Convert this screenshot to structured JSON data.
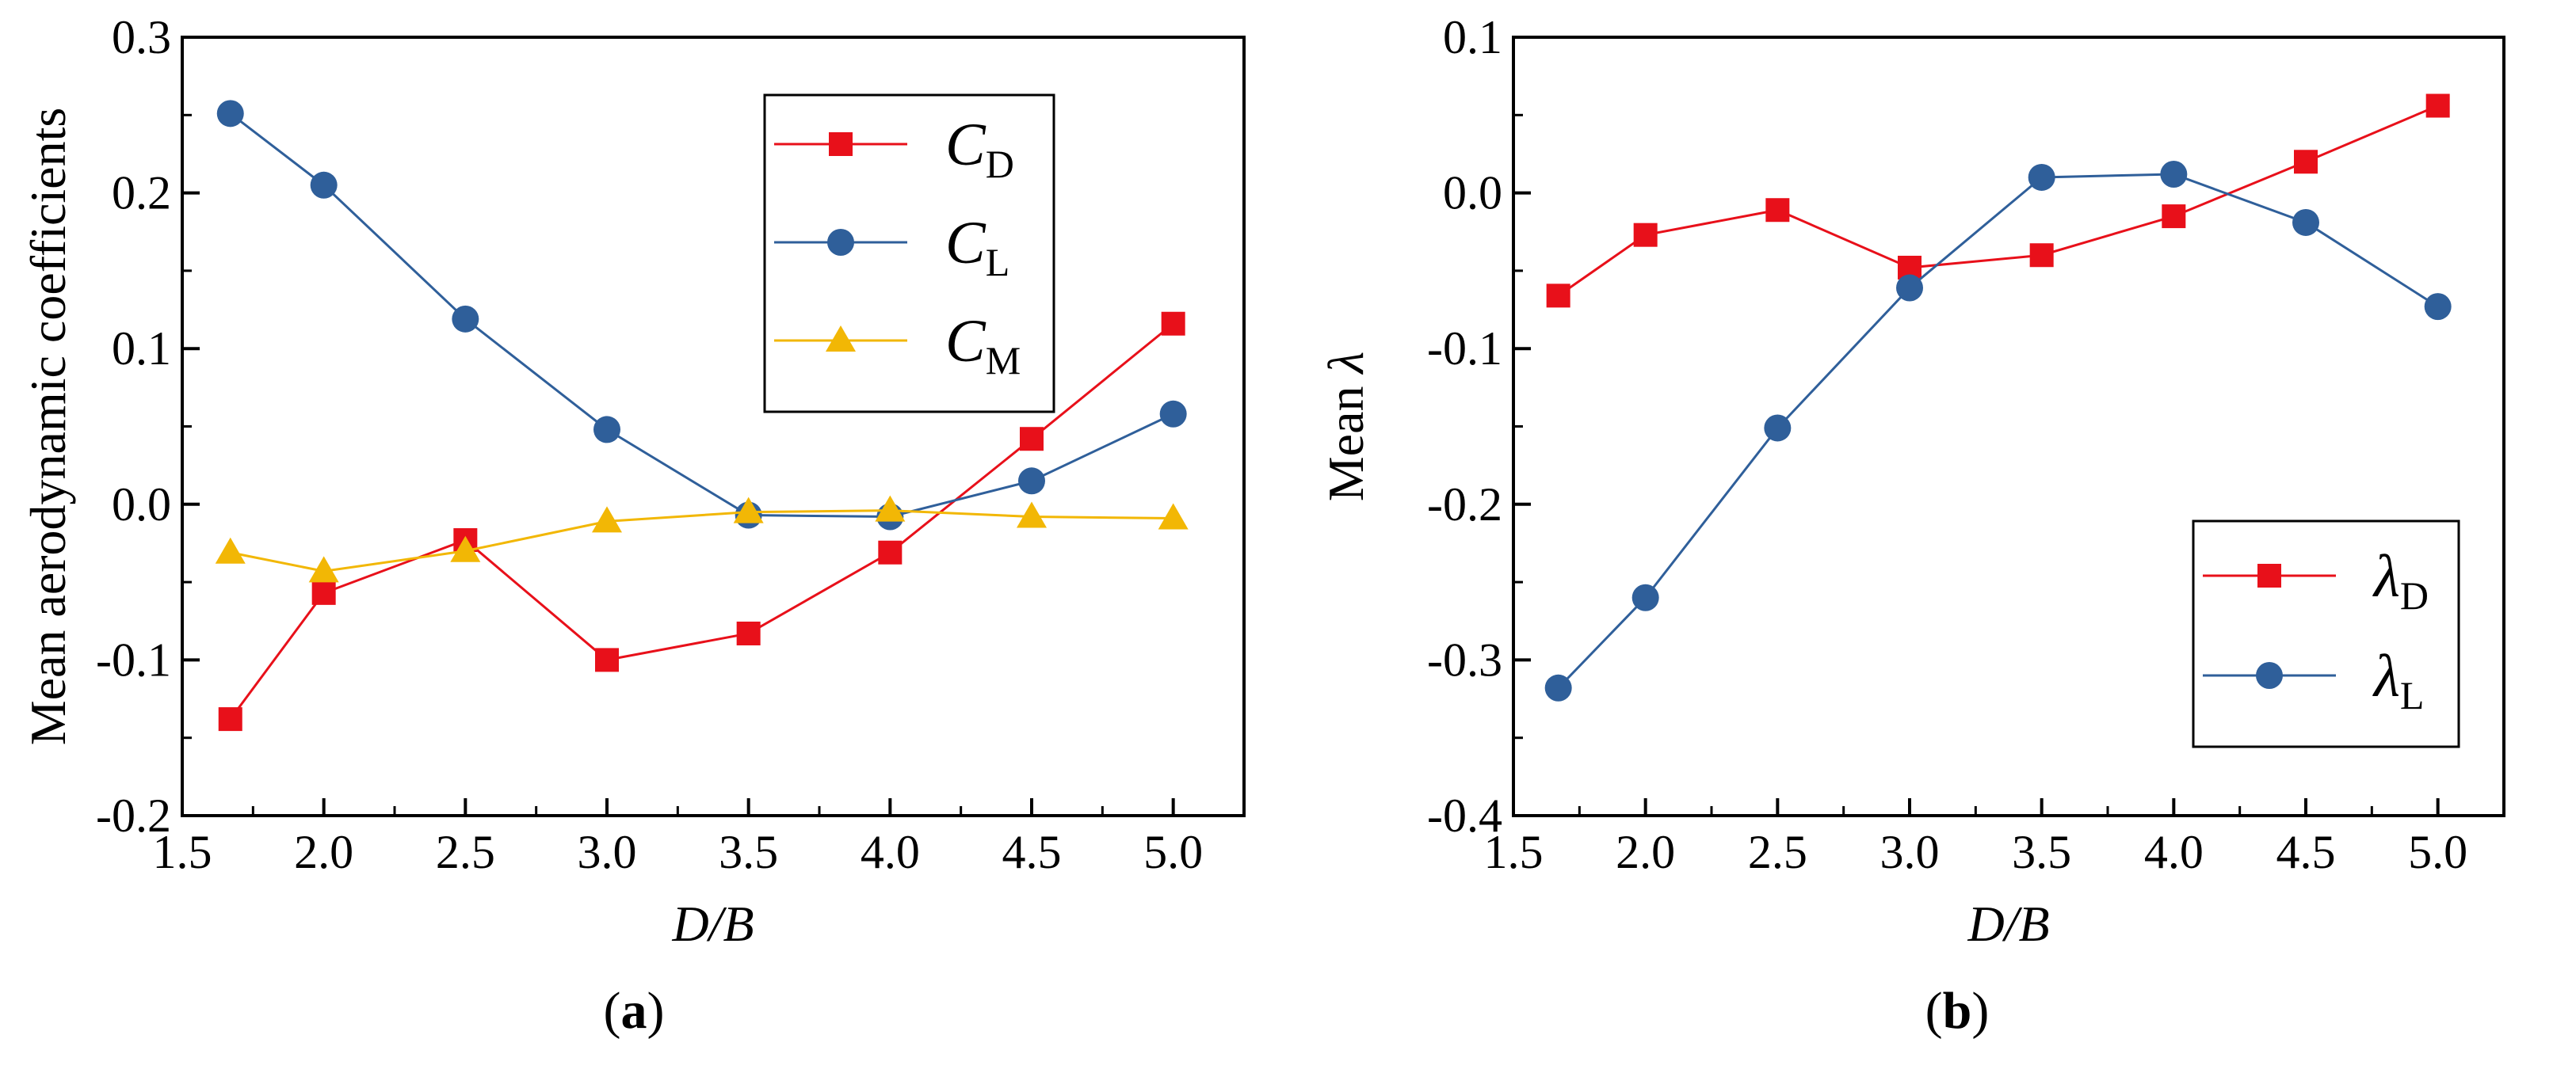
{
  "chart_data": [
    {
      "panel": "a",
      "type": "line",
      "caption_letter": "a",
      "xlabel": "D/B",
      "ylabel": "Mean aerodynamic coefficients",
      "xlim": [
        1.5,
        5.25
      ],
      "ylim": [
        -0.2,
        0.3
      ],
      "xticks": [
        "1.5",
        "2.0",
        "2.5",
        "3.0",
        "3.5",
        "4.0",
        "4.5",
        "5.0"
      ],
      "yticks": [
        "-0.2",
        "-0.1",
        "0.0",
        "0.1",
        "0.2",
        "0.3"
      ],
      "legend_position": "top-right",
      "x": [
        1.67,
        2.0,
        2.5,
        3.0,
        3.5,
        4.0,
        4.5,
        5.0
      ],
      "series": [
        {
          "name": "C",
          "sub": "D",
          "marker": "square",
          "color": "#e8101a",
          "values": [
            -0.138,
            -0.057,
            -0.023,
            -0.1,
            -0.083,
            -0.031,
            0.042,
            0.116
          ]
        },
        {
          "name": "C",
          "sub": "L",
          "marker": "circle",
          "color": "#2f5f9a",
          "values": [
            0.251,
            0.205,
            0.119,
            0.048,
            -0.007,
            -0.008,
            0.015,
            0.058
          ]
        },
        {
          "name": "C",
          "sub": "M",
          "marker": "triangle",
          "color": "#f2b705",
          "values": [
            -0.031,
            -0.043,
            -0.03,
            -0.011,
            -0.005,
            -0.004,
            -0.008,
            -0.009
          ]
        }
      ]
    },
    {
      "panel": "b",
      "type": "line",
      "caption_letter": "b",
      "xlabel": "D/B",
      "ylabel": "Mean",
      "ylabel_symbol": "λ",
      "xlim": [
        1.5,
        5.25
      ],
      "ylim": [
        -0.4,
        0.1
      ],
      "xticks": [
        "1.5",
        "2.0",
        "2.5",
        "3.0",
        "3.5",
        "4.0",
        "4.5",
        "5.0"
      ],
      "yticks": [
        "-0.4",
        "-0.3",
        "-0.2",
        "-0.1",
        "0.0",
        "0.1"
      ],
      "legend_position": "bottom-right",
      "x": [
        1.67,
        2.0,
        2.5,
        3.0,
        3.5,
        4.0,
        4.5,
        5.0
      ],
      "series": [
        {
          "name": "λ",
          "sub": "D",
          "marker": "square",
          "color": "#e8101a",
          "values": [
            -0.066,
            -0.027,
            -0.011,
            -0.048,
            -0.04,
            -0.015,
            0.02,
            0.056
          ]
        },
        {
          "name": "λ",
          "sub": "L",
          "marker": "circle",
          "color": "#2f5f9a",
          "values": [
            -0.318,
            -0.26,
            -0.151,
            -0.061,
            0.01,
            0.012,
            -0.019,
            -0.073
          ]
        }
      ]
    }
  ]
}
